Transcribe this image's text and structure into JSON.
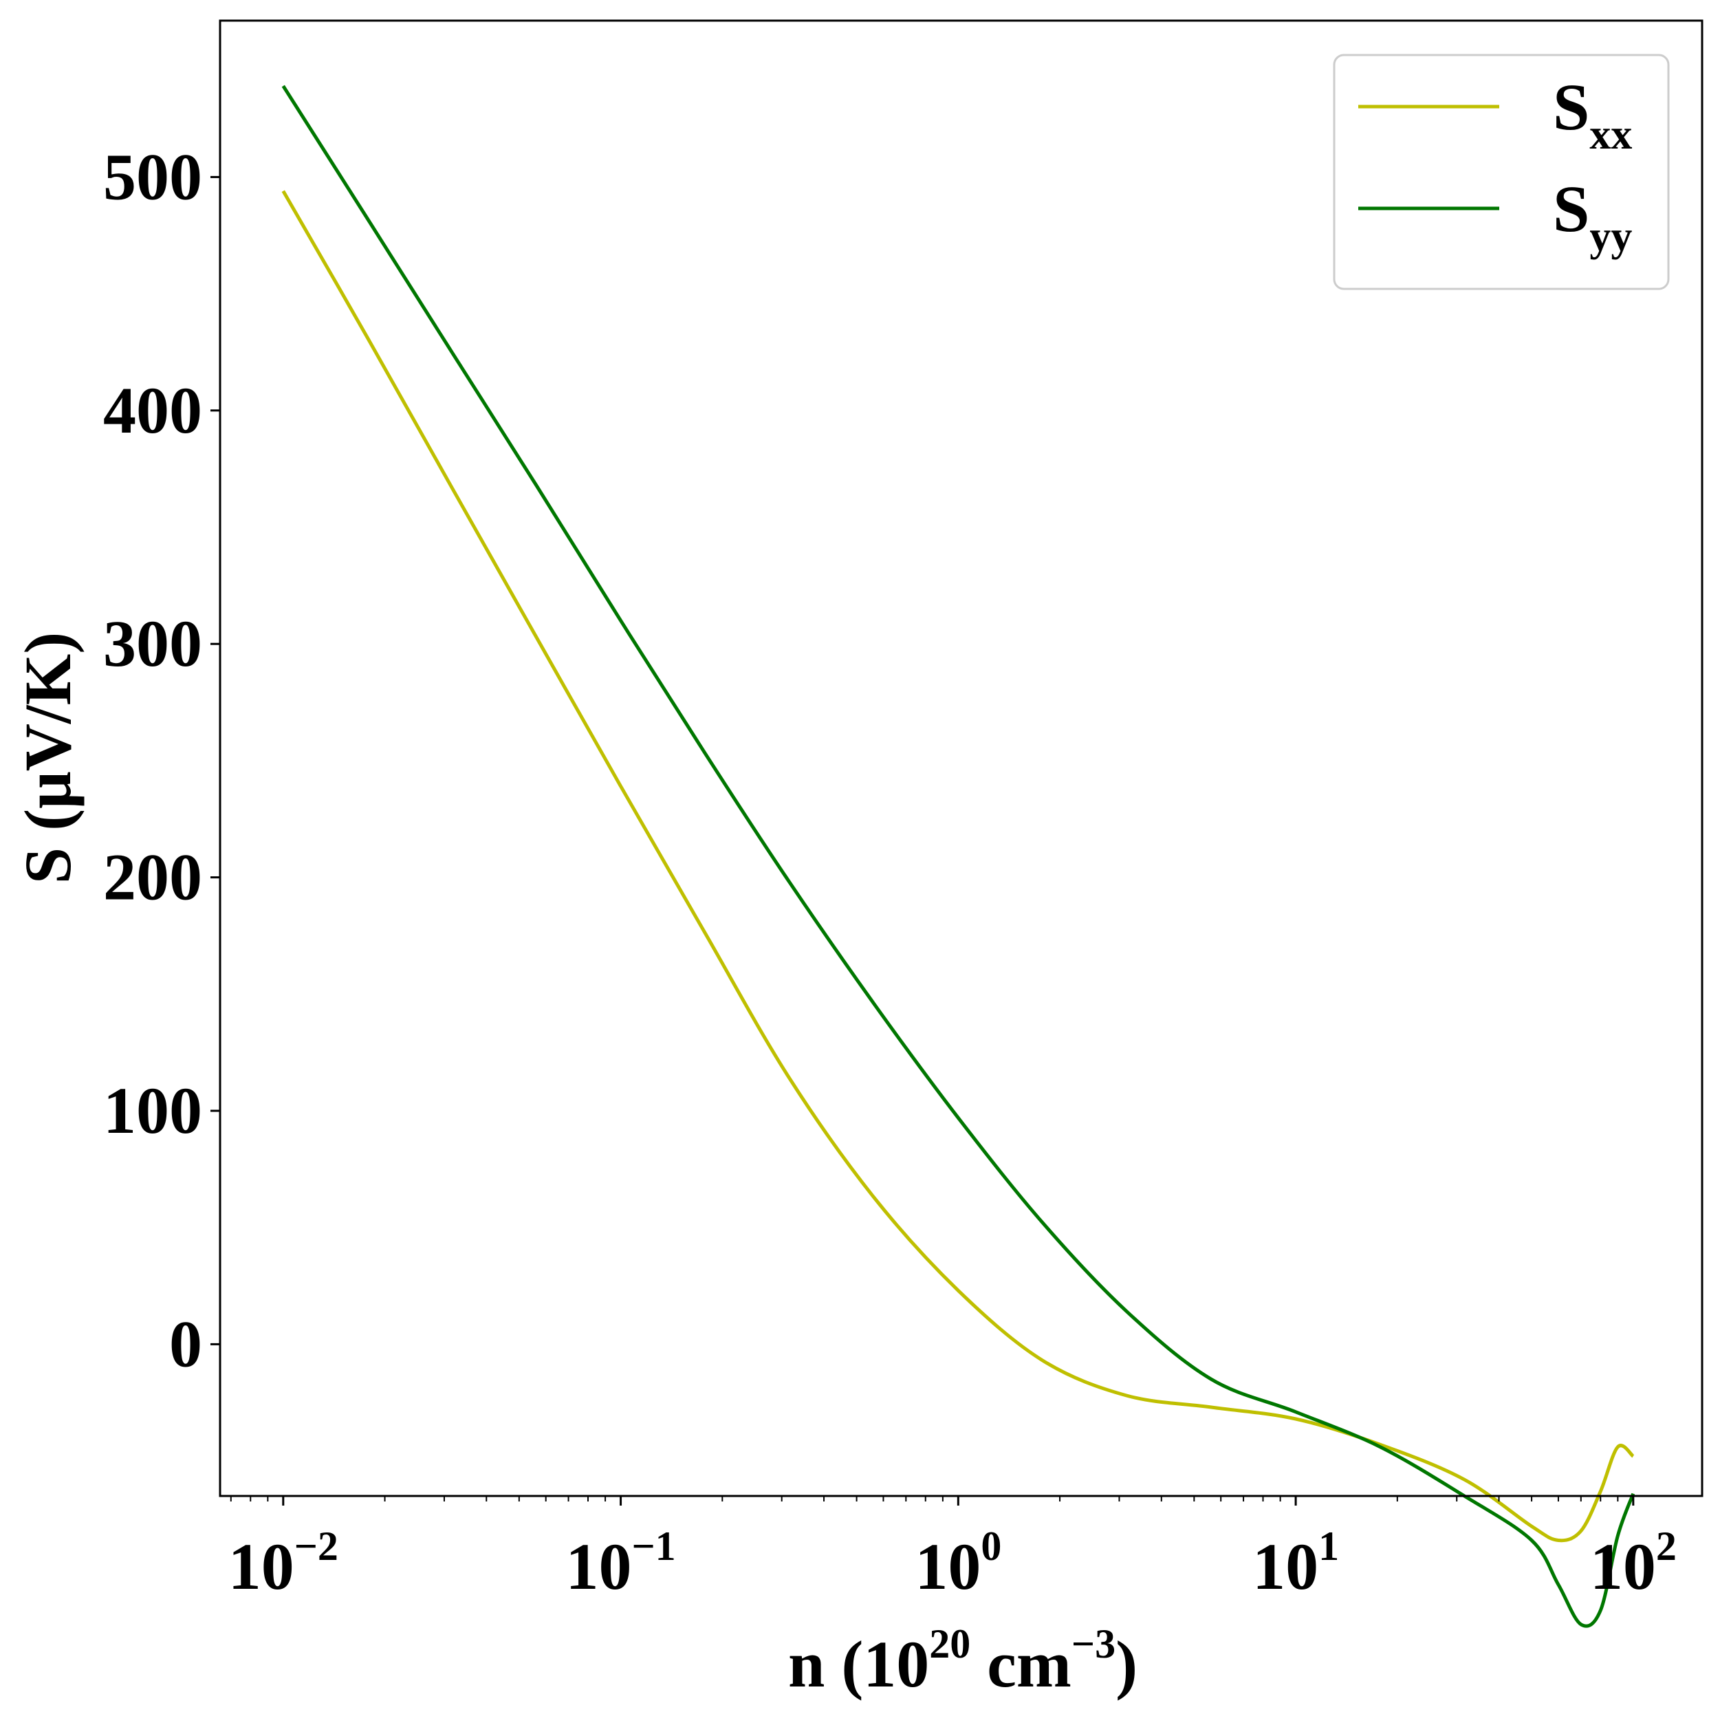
{
  "chart_data": {
    "type": "line",
    "title": "",
    "xscale": "log",
    "xlim": [
      0.0065,
      160
    ],
    "ylim": [
      -65,
      567
    ],
    "xlabel": {
      "base": "n (10",
      "sup1": "20",
      "mid": " cm",
      "sup2": "−3",
      "end": ")"
    },
    "ylabel": "S (μV/K)",
    "yticks": [
      0,
      100,
      200,
      300,
      400,
      500
    ],
    "ytick_labels": [
      "0",
      "100",
      "200",
      "300",
      "400",
      "500"
    ],
    "xticks": [
      {
        "value": 0.01,
        "base": "10",
        "exp": "−2"
      },
      {
        "value": 0.1,
        "base": "10",
        "exp": "−1"
      },
      {
        "value": 1,
        "base": "10",
        "exp": "0"
      },
      {
        "value": 10,
        "base": "10",
        "exp": "1"
      },
      {
        "value": 100,
        "base": "10",
        "exp": "2"
      }
    ],
    "legend": {
      "location": "top-right"
    },
    "series": [
      {
        "name": "Sxx",
        "label_main": "S",
        "label_sub": "xx",
        "color": "#bfbf00",
        "x": [
          0.01,
          0.0178,
          0.0316,
          0.0562,
          0.1,
          0.178,
          0.316,
          0.562,
          1.0,
          1.78,
          3.16,
          5.62,
          10,
          17.8,
          31.6,
          50,
          60,
          70,
          80,
          90,
          100
        ],
        "y": [
          494,
          431,
          367,
          303,
          239,
          176,
          114,
          63,
          23,
          -7,
          -22,
          -27,
          -32,
          -43,
          -58,
          -78,
          -84,
          -80,
          -63,
          -44,
          -48
        ]
      },
      {
        "name": "Syy",
        "label_main": "S",
        "label_sub": "yy",
        "color": "#007700",
        "x": [
          0.01,
          0.0178,
          0.0316,
          0.0562,
          0.1,
          0.178,
          0.316,
          0.562,
          1.0,
          1.78,
          3.16,
          5.62,
          10,
          17.8,
          31.6,
          50,
          60,
          70,
          80,
          90,
          100
        ],
        "y": [
          539,
          482,
          425,
          368,
          310,
          253,
          198,
          146,
          97,
          52,
          14,
          -15,
          -29,
          -44,
          -65,
          -84,
          -103,
          -120,
          -114,
          -82,
          -64
        ]
      }
    ]
  }
}
